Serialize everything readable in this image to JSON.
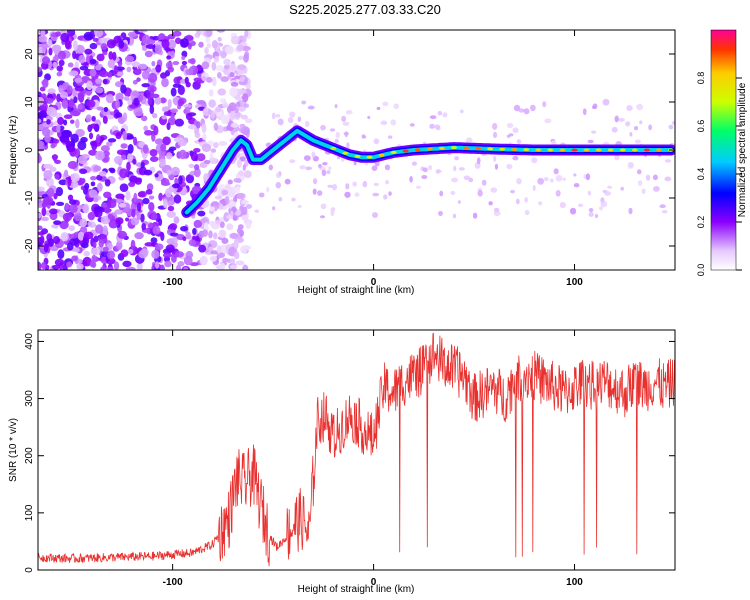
{
  "title": "S225.2025.277.03.33.C20",
  "chart_data": [
    {
      "type": "heatmap",
      "xlabel": "Height of straight line (km)",
      "ylabel": "Frequency (Hz)",
      "xlim": [
        -167,
        150
      ],
      "ylim": [
        -25,
        25
      ],
      "xticks": [
        -100,
        0,
        100
      ],
      "xtick_labels": [
        "-100",
        "0",
        "100"
      ],
      "yticks": [
        -20,
        -10,
        0,
        10,
        20
      ],
      "ytick_labels": [
        "-20",
        "-10",
        "0",
        "10",
        "20"
      ],
      "colorbar": {
        "label": "Normalized spectral amplitude",
        "range": [
          0,
          1
        ],
        "ticks": [
          0.0,
          0.2,
          0.4,
          0.6,
          0.8
        ],
        "tick_labels": [
          "0.0",
          "0.2",
          "0.4",
          "0.6",
          "0.8"
        ]
      },
      "ridge": {
        "name": "dominant frequency",
        "x": [
          -93,
          -88,
          -82,
          -76,
          -70,
          -66,
          -63,
          -60,
          -56,
          -50,
          -44,
          -38,
          -34,
          -30,
          -24,
          -18,
          -12,
          -6,
          0,
          10,
          20,
          40,
          60,
          80,
          100,
          120,
          148
        ],
        "y": [
          -13,
          -11,
          -8,
          -4,
          0,
          2,
          1,
          -2,
          -2,
          0,
          2,
          4,
          3,
          2,
          1,
          0,
          -1,
          -1.5,
          -1.5,
          -0.5,
          0,
          0.5,
          0.2,
          0,
          0,
          0,
          0
        ]
      }
    },
    {
      "type": "line",
      "xlabel": "Height of straight line (km)",
      "ylabel": "SNR (10 * v/v)",
      "xlim": [
        -167,
        150
      ],
      "ylim": [
        0,
        420
      ],
      "xticks": [
        -100,
        0,
        100
      ],
      "xtick_labels": [
        "-100",
        "0",
        "100"
      ],
      "yticks": [
        0,
        100,
        200,
        300,
        400
      ],
      "ytick_labels": [
        "0",
        "100",
        "200",
        "300",
        "400"
      ],
      "series": [
        {
          "name": "SNR",
          "color": "#e8312f",
          "x": [
            -167,
            -150,
            -130,
            -110,
            -90,
            -80,
            -72,
            -68,
            -64,
            -60,
            -56,
            -52,
            -48,
            -44,
            -40,
            -36,
            -32,
            -28,
            -24,
            -20,
            -16,
            -12,
            -8,
            -4,
            0,
            5,
            10,
            15,
            20,
            25,
            30,
            35,
            40,
            45,
            50,
            55,
            60,
            65,
            70,
            75,
            80,
            85,
            90,
            95,
            100,
            105,
            110,
            115,
            120,
            125,
            130,
            135,
            140,
            145,
            150
          ],
          "y": [
            22,
            20,
            22,
            24,
            30,
            45,
            90,
            160,
            150,
            170,
            110,
            60,
            40,
            55,
            80,
            90,
            60,
            260,
            270,
            230,
            250,
            270,
            260,
            240,
            230,
            320,
            310,
            330,
            340,
            350,
            380,
            360,
            350,
            340,
            300,
            310,
            320,
            300,
            330,
            340,
            340,
            330,
            320,
            310,
            320,
            330,
            320,
            330,
            320,
            310,
            330,
            320,
            330,
            320,
            330
          ]
        }
      ]
    }
  ]
}
